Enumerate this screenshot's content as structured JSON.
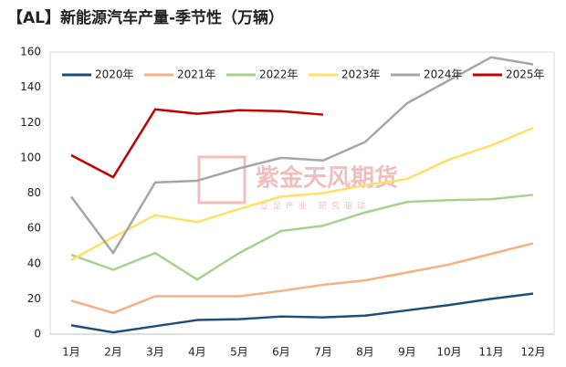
{
  "chart_data": {
    "type": "line",
    "title": "【AL】新能源汽车产量-季节性（万辆）",
    "watermark": {
      "name": "紫金天风期货",
      "slogan": "立足产业 研究驱动"
    },
    "categories": [
      "1月",
      "2月",
      "3月",
      "4月",
      "5月",
      "6月",
      "7月",
      "8月",
      "9月",
      "10月",
      "11月",
      "12月"
    ],
    "series": [
      {
        "name": "2020年",
        "color": "#1f4e79",
        "values": [
          5,
          1,
          4.5,
          8,
          8.5,
          10,
          9.5,
          10.5,
          13.5,
          16.5,
          20,
          23
        ]
      },
      {
        "name": "2021年",
        "color": "#f4b183",
        "values": [
          19,
          12,
          21.5,
          21.5,
          21.5,
          24.5,
          28,
          30.5,
          35,
          39.5,
          45.5,
          51.5
        ]
      },
      {
        "name": "2022年",
        "color": "#a9d18e",
        "values": [
          45,
          36.5,
          46,
          31,
          46,
          58.5,
          61.5,
          69,
          75,
          76,
          76.5,
          79
        ]
      },
      {
        "name": "2023年",
        "color": "#ffe066",
        "values": [
          42,
          55,
          67.5,
          63.5,
          71,
          78,
          80,
          84.5,
          88,
          99,
          107,
          117
        ]
      },
      {
        "name": "2024年",
        "color": "#a6a6a6",
        "values": [
          78,
          46,
          86,
          87,
          94,
          100,
          98.5,
          109,
          131,
          144,
          157,
          153
        ]
      },
      {
        "name": "2025年",
        "color": "#c00000",
        "values": [
          101.5,
          89,
          127.5,
          125,
          127,
          126.5,
          124.5,
          null,
          null,
          null,
          null,
          null
        ]
      }
    ],
    "ylim": [
      0,
      160
    ],
    "yticks": [
      0,
      20,
      40,
      60,
      80,
      100,
      120,
      140,
      160
    ],
    "grid": false
  }
}
